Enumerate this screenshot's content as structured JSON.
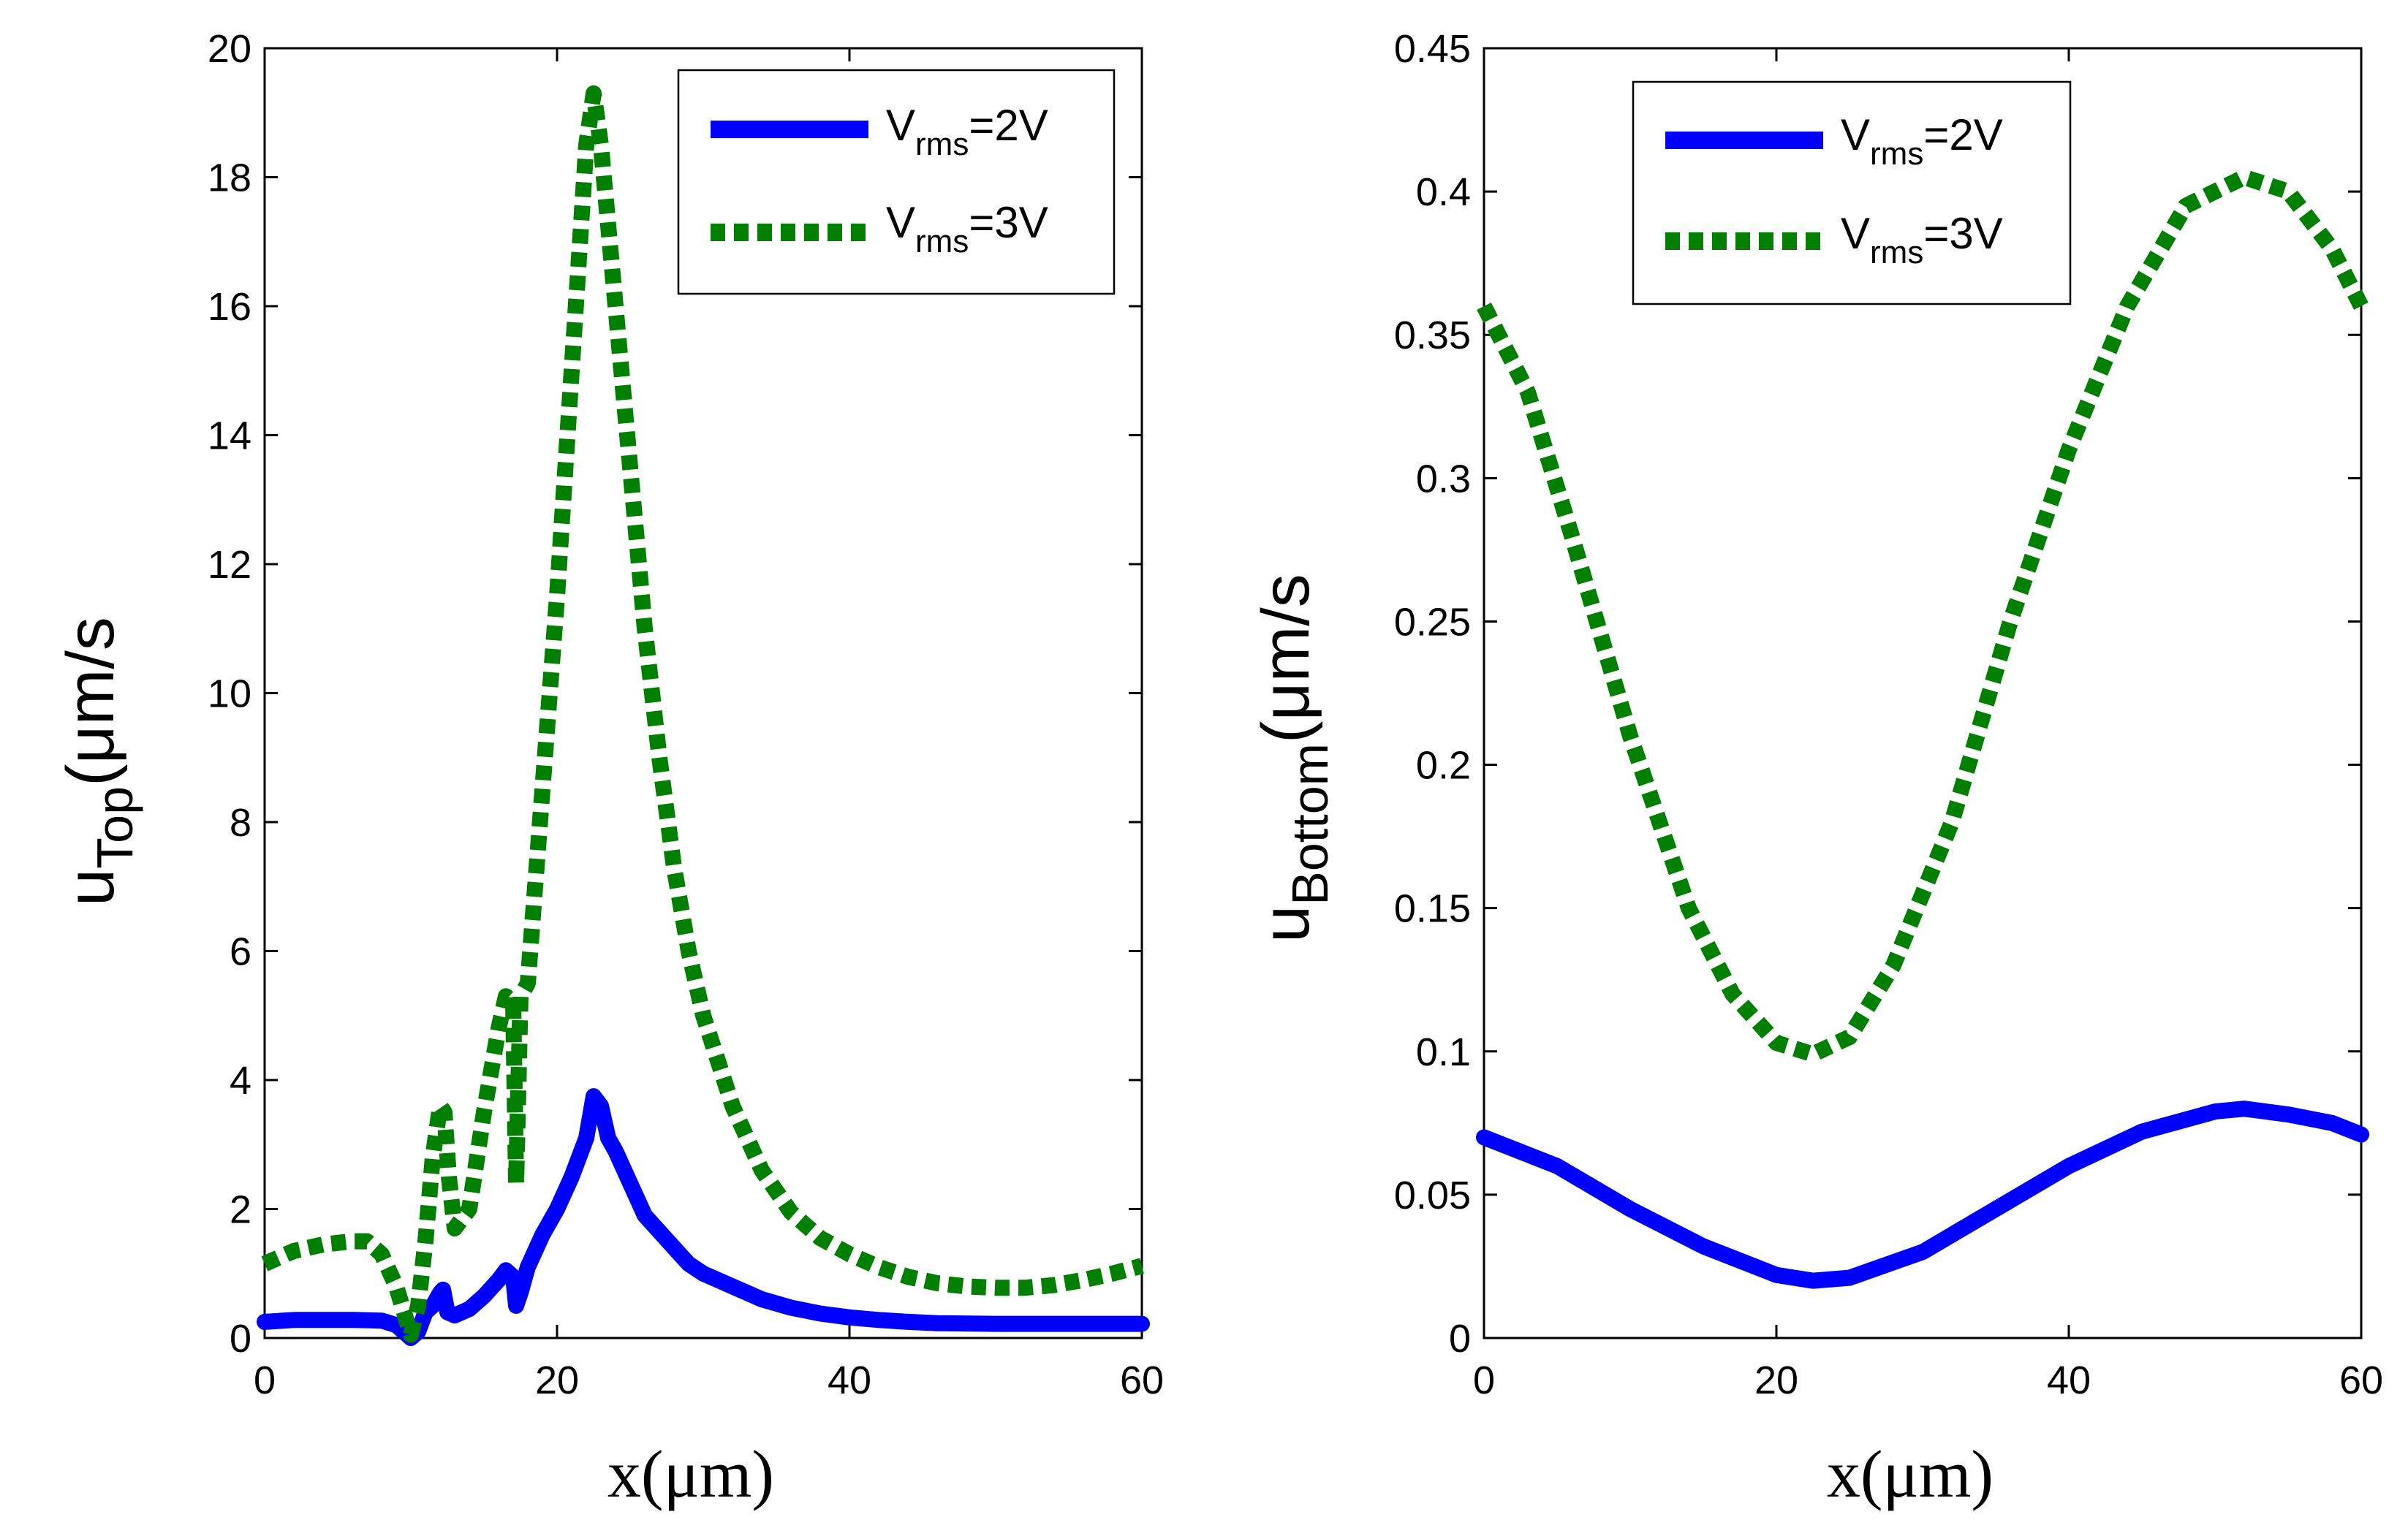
{
  "colors": {
    "series_2v": "#0000ff",
    "series_3v": "#007f00",
    "axis": "#000000"
  },
  "chart_data": [
    {
      "type": "line",
      "title": "",
      "xlabel": "x(μm)",
      "ylabel_main": "u",
      "ylabel_sub": "Top",
      "ylabel_unit": "(μm/s",
      "xlim": [
        0,
        60
      ],
      "ylim": [
        0,
        20
      ],
      "xticks": [
        0,
        20,
        40,
        60
      ],
      "yticks": [
        0,
        2,
        4,
        6,
        8,
        10,
        12,
        14,
        16,
        18,
        20
      ],
      "xtick_labels": [
        "0",
        "20",
        "40",
        "60"
      ],
      "ytick_labels": [
        "0",
        "2",
        "4",
        "6",
        "8",
        "10",
        "12",
        "14",
        "16",
        "18",
        "20"
      ],
      "legend_position": "top-right",
      "series": [
        {
          "name": "Vrms=2V",
          "legend_main": "V",
          "legend_sub": "rms",
          "legend_rest": "=2V",
          "style": "solid",
          "color": "#0000ff",
          "points": [
            [
              0,
              0.25
            ],
            [
              2,
              0.28
            ],
            [
              4,
              0.28
            ],
            [
              6,
              0.28
            ],
            [
              8,
              0.27
            ],
            [
              9,
              0.2
            ],
            [
              10,
              0.0
            ],
            [
              10.5,
              0.1
            ],
            [
              11,
              0.4
            ],
            [
              11.5,
              0.5
            ],
            [
              12,
              0.7
            ],
            [
              12.2,
              0.75
            ],
            [
              12.5,
              0.4
            ],
            [
              13,
              0.35
            ],
            [
              14,
              0.45
            ],
            [
              15,
              0.65
            ],
            [
              16,
              0.9
            ],
            [
              16.5,
              1.05
            ],
            [
              17,
              0.95
            ],
            [
              17.2,
              0.5
            ],
            [
              17.5,
              0.7
            ],
            [
              18,
              1.1
            ],
            [
              19,
              1.6
            ],
            [
              20,
              2.0
            ],
            [
              21,
              2.5
            ],
            [
              22,
              3.1
            ],
            [
              22.5,
              3.75
            ],
            [
              23,
              3.6
            ],
            [
              23.5,
              3.1
            ],
            [
              24,
              2.9
            ],
            [
              25,
              2.4
            ],
            [
              26,
              1.9
            ],
            [
              27,
              1.65
            ],
            [
              28,
              1.4
            ],
            [
              29,
              1.15
            ],
            [
              30,
              1.0
            ],
            [
              32,
              0.8
            ],
            [
              34,
              0.6
            ],
            [
              36,
              0.47
            ],
            [
              38,
              0.38
            ],
            [
              40,
              0.32
            ],
            [
              42,
              0.28
            ],
            [
              44,
              0.25
            ],
            [
              46,
              0.23
            ],
            [
              50,
              0.22
            ],
            [
              55,
              0.22
            ],
            [
              60,
              0.22
            ]
          ]
        },
        {
          "name": "Vrms=3V",
          "legend_main": "V",
          "legend_sub": "rms",
          "legend_rest": "=3V",
          "style": "dotted",
          "color": "#007f00",
          "points": [
            [
              0,
              1.15
            ],
            [
              2,
              1.35
            ],
            [
              4,
              1.45
            ],
            [
              6,
              1.5
            ],
            [
              7,
              1.5
            ],
            [
              8,
              1.3
            ],
            [
              9,
              0.8
            ],
            [
              10,
              0.05
            ],
            [
              10.5,
              0.5
            ],
            [
              11,
              1.5
            ],
            [
              11.5,
              2.8
            ],
            [
              12,
              3.6
            ],
            [
              12.3,
              3.5
            ],
            [
              12.6,
              2.5
            ],
            [
              13,
              1.7
            ],
            [
              14,
              2.0
            ],
            [
              15,
              3.5
            ],
            [
              16,
              4.8
            ],
            [
              16.5,
              5.3
            ],
            [
              17,
              5.2
            ],
            [
              17.2,
              2.4
            ],
            [
              17.5,
              5.3
            ],
            [
              18,
              5.5
            ],
            [
              19,
              8.5
            ],
            [
              20,
              11.5
            ],
            [
              21,
              15.0
            ],
            [
              22,
              18.5
            ],
            [
              22.5,
              19.3
            ],
            [
              23,
              18.5
            ],
            [
              24,
              16.0
            ],
            [
              25,
              13.5
            ],
            [
              26,
              11.0
            ],
            [
              27,
              9.0
            ],
            [
              28,
              7.3
            ],
            [
              29,
              6.0
            ],
            [
              30,
              5.0
            ],
            [
              32,
              3.6
            ],
            [
              34,
              2.6
            ],
            [
              36,
              1.95
            ],
            [
              38,
              1.55
            ],
            [
              40,
              1.3
            ],
            [
              42,
              1.1
            ],
            [
              44,
              0.95
            ],
            [
              46,
              0.85
            ],
            [
              48,
              0.8
            ],
            [
              50,
              0.78
            ],
            [
              52,
              0.78
            ],
            [
              54,
              0.82
            ],
            [
              56,
              0.9
            ],
            [
              58,
              1.0
            ],
            [
              60,
              1.12
            ]
          ]
        }
      ]
    },
    {
      "type": "line",
      "title": "",
      "xlabel": "x(μm)",
      "ylabel_main": "u",
      "ylabel_sub": "Bottom",
      "ylabel_unit": "(μm/s",
      "xlim": [
        0,
        60
      ],
      "ylim": [
        0,
        0.45
      ],
      "xticks": [
        0,
        20,
        40,
        60
      ],
      "yticks": [
        0,
        0.05,
        0.1,
        0.15,
        0.2,
        0.25,
        0.3,
        0.35,
        0.4,
        0.45
      ],
      "xtick_labels": [
        "0",
        "20",
        "40",
        "60"
      ],
      "ytick_labels": [
        "0",
        "0.05",
        "0.1",
        "0.15",
        "0.2",
        "0.25",
        "0.3",
        "0.35",
        "0.4",
        "0.45"
      ],
      "legend_position": "top-center",
      "series": [
        {
          "name": "Vrms=2V",
          "legend_main": "V",
          "legend_sub": "rms",
          "legend_rest": "=2V",
          "style": "solid",
          "color": "#0000ff",
          "points": [
            [
              0,
              0.07
            ],
            [
              5,
              0.06
            ],
            [
              10,
              0.045
            ],
            [
              15,
              0.032
            ],
            [
              20,
              0.022
            ],
            [
              22.5,
              0.02
            ],
            [
              25,
              0.021
            ],
            [
              30,
              0.03
            ],
            [
              35,
              0.045
            ],
            [
              40,
              0.06
            ],
            [
              45,
              0.072
            ],
            [
              50,
              0.079
            ],
            [
              52,
              0.08
            ],
            [
              55,
              0.078
            ],
            [
              58,
              0.075
            ],
            [
              60,
              0.071
            ]
          ]
        },
        {
          "name": "Vrms=3V",
          "legend_main": "V",
          "legend_sub": "rms",
          "legend_rest": "=3V",
          "style": "dotted",
          "color": "#007f00",
          "points": [
            [
              0,
              0.36
            ],
            [
              3,
              0.33
            ],
            [
              6,
              0.28
            ],
            [
              10,
              0.21
            ],
            [
              14,
              0.15
            ],
            [
              17,
              0.12
            ],
            [
              20,
              0.103
            ],
            [
              22.5,
              0.099
            ],
            [
              25,
              0.105
            ],
            [
              28,
              0.13
            ],
            [
              32,
              0.18
            ],
            [
              36,
              0.25
            ],
            [
              40,
              0.31
            ],
            [
              44,
              0.36
            ],
            [
              48,
              0.395
            ],
            [
              52,
              0.405
            ],
            [
              55,
              0.4
            ],
            [
              58,
              0.38
            ],
            [
              60,
              0.36
            ]
          ]
        }
      ]
    }
  ]
}
